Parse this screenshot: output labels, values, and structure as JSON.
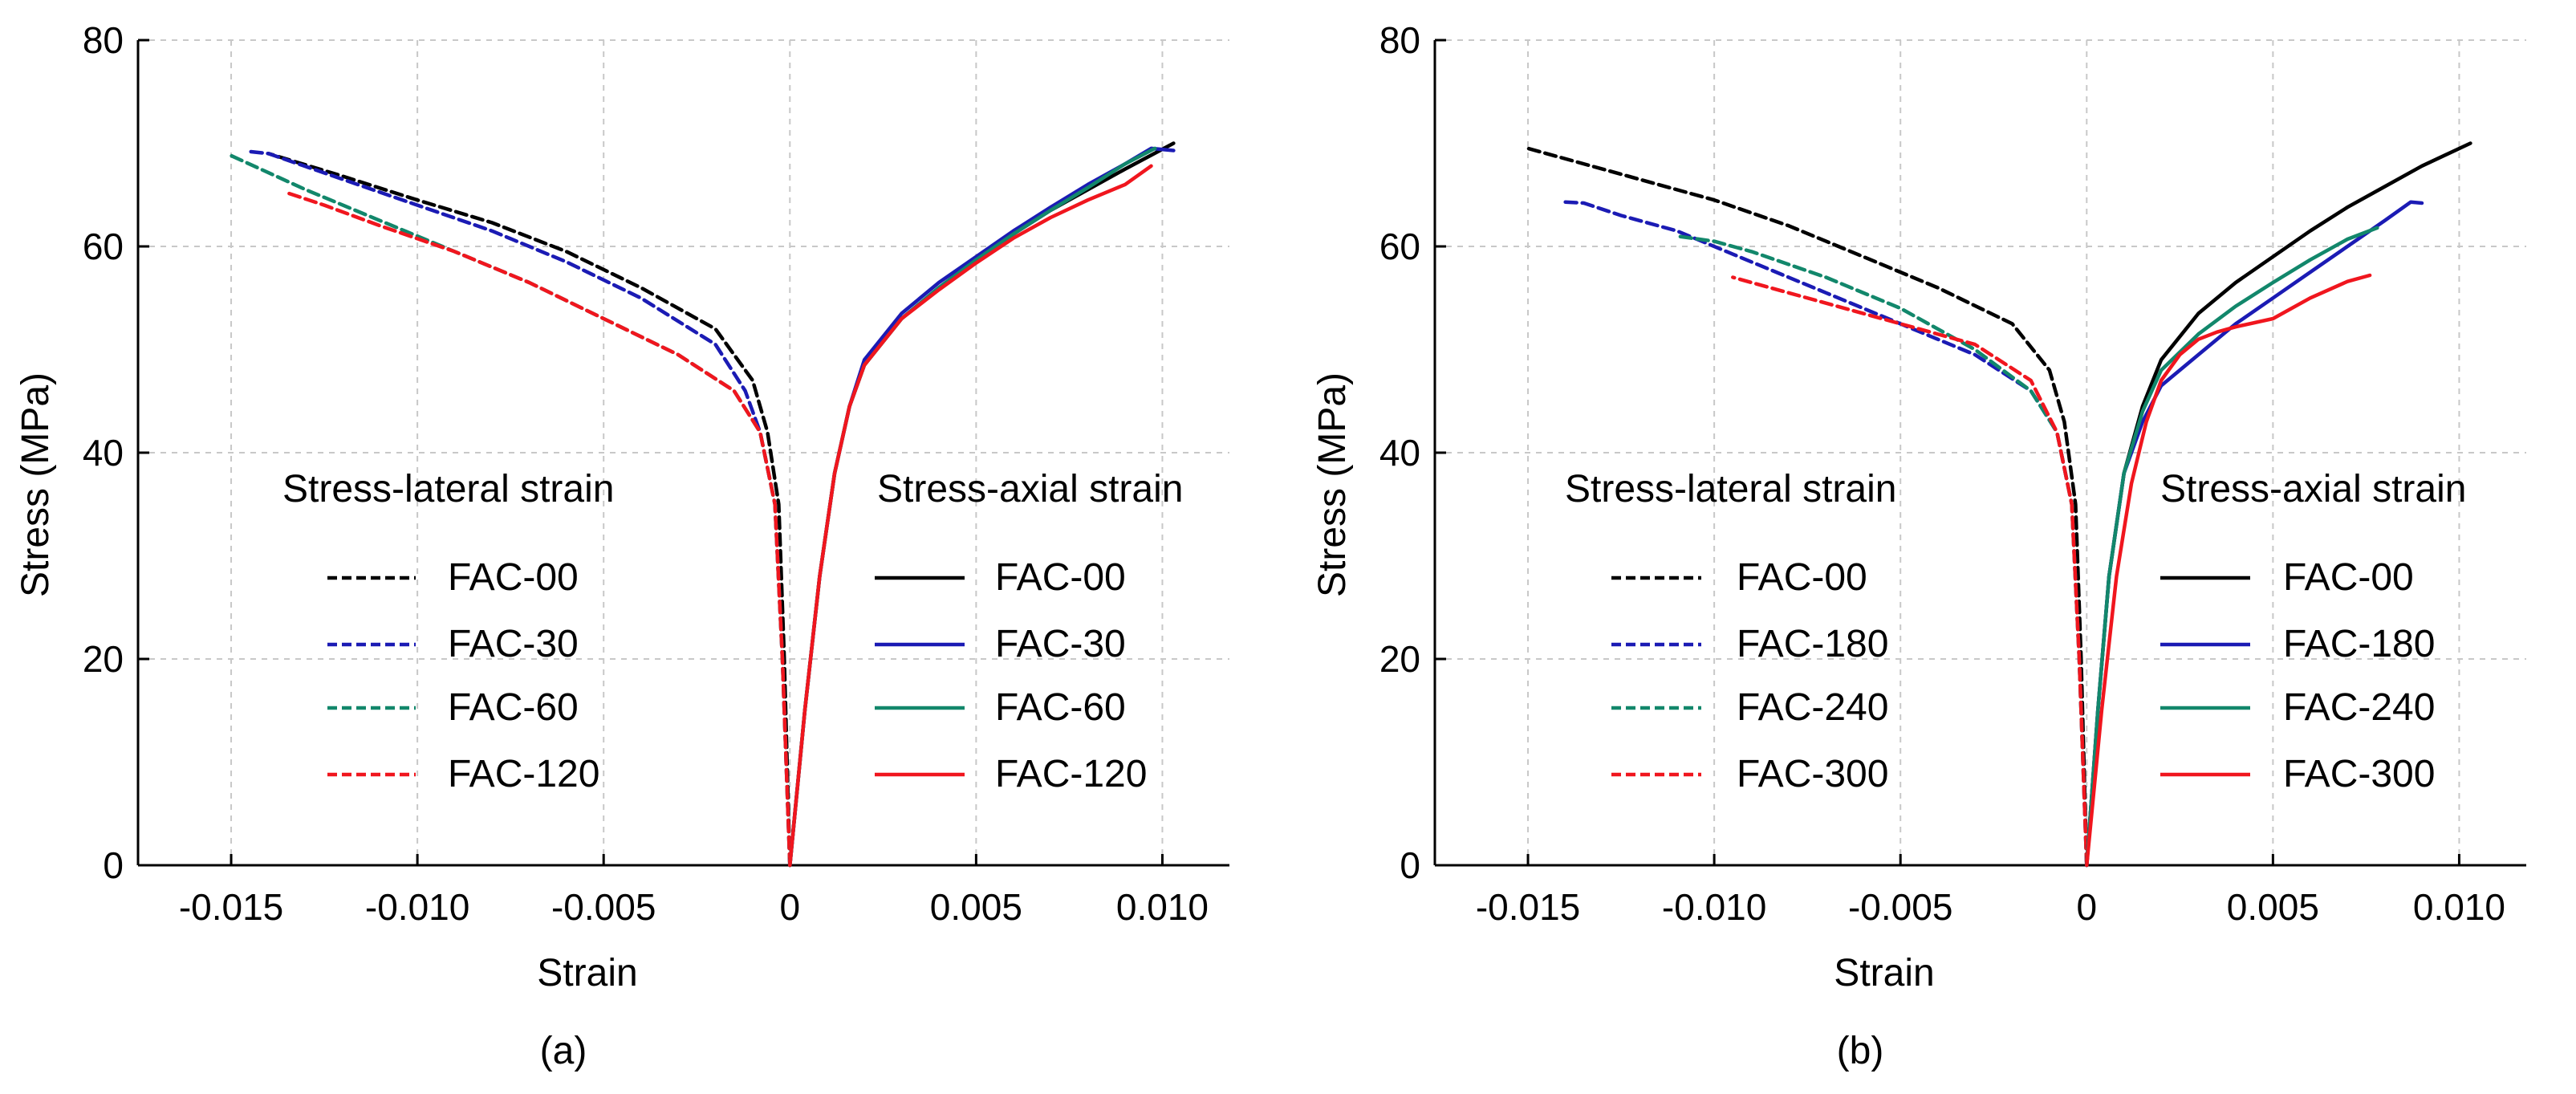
{
  "colors": {
    "FAC-00": "#000000",
    "FAC-30": "#1b1bb4",
    "FAC-180": "#1b1bb4",
    "FAC-60": "#12876b",
    "FAC-240": "#12876b",
    "FAC-120": "#f0161e",
    "FAC-300": "#f0161e"
  },
  "chart_data": [
    {
      "type": "line",
      "caption": "(a)",
      "xlabel": "Strain",
      "ylabel": "Stress (MPa)",
      "xlim": [
        -0.0175,
        0.0118
      ],
      "ylim": [
        0,
        80
      ],
      "xticks": [
        -0.015,
        -0.01,
        -0.005,
        0,
        0.005,
        0.01
      ],
      "xtick_labels": [
        "-0.015",
        "-0.010",
        "-0.005",
        "0",
        "0.005",
        "0.010"
      ],
      "yticks": [
        0,
        20,
        40,
        60,
        80
      ],
      "ytick_labels": [
        "0",
        "20",
        "40",
        "60",
        "80"
      ],
      "grid": true,
      "legend_groups": [
        {
          "title": "Stress-lateral strain",
          "style": "dashed",
          "entries": [
            "FAC-00",
            "FAC-30",
            "FAC-60",
            "FAC-120"
          ]
        },
        {
          "title": "Stress-axial strain",
          "style": "solid",
          "entries": [
            "FAC-00",
            "FAC-30",
            "FAC-60",
            "FAC-120"
          ]
        }
      ],
      "series": [
        {
          "name": "FAC-00",
          "kind": "lateral",
          "x": [
            0,
            -0.00015,
            -0.0003,
            -0.0006,
            -0.001,
            -0.002,
            -0.004,
            -0.006,
            -0.008,
            -0.01,
            -0.012,
            -0.014
          ],
          "y": [
            0,
            20,
            35,
            42,
            47,
            52,
            56,
            59.5,
            62.3,
            64.5,
            66.8,
            69
          ]
        },
        {
          "name": "FAC-30",
          "kind": "lateral",
          "x": [
            0,
            -0.0002,
            -0.0004,
            -0.0008,
            -0.0012,
            -0.002,
            -0.004,
            -0.006,
            -0.008,
            -0.01,
            -0.012,
            -0.014,
            -0.0145
          ],
          "y": [
            0,
            20,
            35,
            42,
            46,
            50.5,
            55,
            58.5,
            61.5,
            64,
            66.5,
            69,
            69.2
          ]
        },
        {
          "name": "FAC-60",
          "kind": "lateral",
          "x": [
            0,
            -0.0002,
            -0.0004,
            -0.0008,
            -0.0015,
            -0.003,
            -0.005,
            -0.007,
            -0.009,
            -0.011,
            -0.013,
            -0.015
          ],
          "y": [
            0,
            20,
            35,
            42,
            46,
            49.5,
            53,
            56.5,
            59.5,
            62.5,
            65.5,
            68.8
          ]
        },
        {
          "name": "FAC-120",
          "kind": "lateral",
          "x": [
            0,
            -0.0002,
            -0.0004,
            -0.0008,
            -0.0015,
            -0.003,
            -0.005,
            -0.007,
            -0.009,
            -0.011,
            -0.0125,
            -0.0135
          ],
          "y": [
            0,
            20,
            35,
            42,
            46,
            49.5,
            53,
            56.5,
            59.5,
            62,
            64,
            65.2
          ]
        },
        {
          "name": "FAC-00",
          "kind": "axial",
          "x": [
            0,
            0.0004,
            0.0008,
            0.0012,
            0.0016,
            0.002,
            0.003,
            0.004,
            0.005,
            0.006,
            0.007,
            0.008,
            0.009,
            0.0103
          ],
          "y": [
            0,
            15,
            28,
            38,
            44.5,
            48.5,
            53,
            56,
            58.7,
            61.2,
            63.5,
            65.5,
            67.5,
            70
          ]
        },
        {
          "name": "FAC-30",
          "kind": "axial",
          "x": [
            0,
            0.0004,
            0.0008,
            0.0012,
            0.0016,
            0.002,
            0.003,
            0.004,
            0.005,
            0.006,
            0.007,
            0.008,
            0.009,
            0.0097,
            0.0103
          ],
          "y": [
            0,
            15,
            28,
            38,
            44.5,
            49,
            53.5,
            56.5,
            59,
            61.5,
            63.8,
            66,
            68,
            69.5,
            69.3
          ]
        },
        {
          "name": "FAC-60",
          "kind": "axial",
          "x": [
            0,
            0.0004,
            0.0008,
            0.0012,
            0.0016,
            0.002,
            0.003,
            0.004,
            0.005,
            0.006,
            0.007,
            0.008,
            0.009,
            0.0098
          ],
          "y": [
            0,
            15,
            28,
            38,
            44.5,
            48.5,
            53,
            56,
            58.7,
            61.2,
            63.5,
            65.7,
            68,
            69.5
          ]
        },
        {
          "name": "FAC-120",
          "kind": "axial",
          "x": [
            0,
            0.0004,
            0.0008,
            0.0012,
            0.0016,
            0.002,
            0.003,
            0.004,
            0.005,
            0.006,
            0.007,
            0.008,
            0.009,
            0.0097
          ],
          "y": [
            0,
            15,
            28,
            38,
            44.5,
            48.5,
            53,
            55.8,
            58.4,
            60.8,
            62.8,
            64.5,
            66,
            67.8
          ]
        }
      ]
    },
    {
      "type": "line",
      "caption": "(b)",
      "xlabel": "Strain",
      "ylabel": "Stress (MPa)",
      "xlim": [
        -0.0175,
        0.0118
      ],
      "ylim": [
        0,
        80
      ],
      "xticks": [
        -0.015,
        -0.01,
        -0.005,
        0,
        0.005,
        0.01
      ],
      "xtick_labels": [
        "-0.015",
        "-0.010",
        "-0.005",
        "0",
        "0.005",
        "0.010"
      ],
      "yticks": [
        0,
        20,
        40,
        60,
        80
      ],
      "ytick_labels": [
        "0",
        "20",
        "40",
        "60",
        "80"
      ],
      "grid": true,
      "legend_groups": [
        {
          "title": "Stress-lateral strain",
          "style": "dashed",
          "entries": [
            "FAC-00",
            "FAC-180",
            "FAC-240",
            "FAC-300"
          ]
        },
        {
          "title": "Stress-axial strain",
          "style": "solid",
          "entries": [
            "FAC-00",
            "FAC-180",
            "FAC-240",
            "FAC-300"
          ]
        }
      ],
      "series": [
        {
          "name": "FAC-00",
          "kind": "lateral",
          "x": [
            0,
            -0.00015,
            -0.0003,
            -0.0006,
            -0.001,
            -0.002,
            -0.004,
            -0.006,
            -0.008,
            -0.01,
            -0.012,
            -0.015
          ],
          "y": [
            0,
            20,
            35,
            43,
            48,
            52.5,
            56,
            59,
            62,
            64.5,
            66.5,
            69.5
          ]
        },
        {
          "name": "FAC-180",
          "kind": "lateral",
          "x": [
            0,
            -0.0002,
            -0.0004,
            -0.0008,
            -0.0015,
            -0.003,
            -0.005,
            -0.007,
            -0.009,
            -0.011,
            -0.0125,
            -0.0135,
            -0.014
          ],
          "y": [
            0,
            20,
            35,
            42,
            46,
            49.5,
            52.5,
            55.5,
            58.5,
            61.5,
            63,
            64.2,
            64.3
          ]
        },
        {
          "name": "FAC-240",
          "kind": "lateral",
          "x": [
            0,
            -0.0002,
            -0.0004,
            -0.0008,
            -0.0015,
            -0.003,
            -0.005,
            -0.007,
            -0.009,
            -0.01,
            -0.011
          ],
          "y": [
            0,
            20,
            35,
            42,
            46,
            50,
            54,
            57,
            59.5,
            60.5,
            61
          ]
        },
        {
          "name": "FAC-300",
          "kind": "lateral",
          "x": [
            0,
            -0.0002,
            -0.0004,
            -0.0008,
            -0.0015,
            -0.003,
            -0.005,
            -0.007,
            -0.009,
            -0.0095
          ],
          "y": [
            0,
            20,
            35,
            42,
            47,
            50.5,
            52.5,
            54.5,
            56.5,
            57
          ]
        },
        {
          "name": "FAC-00",
          "kind": "axial",
          "x": [
            0,
            0.0003,
            0.0006,
            0.001,
            0.0015,
            0.002,
            0.003,
            0.004,
            0.005,
            0.006,
            0.007,
            0.008,
            0.009,
            0.0103
          ],
          "y": [
            0,
            15,
            28,
            38,
            44.5,
            49,
            53.5,
            56.5,
            59,
            61.5,
            63.8,
            65.8,
            67.8,
            70
          ]
        },
        {
          "name": "FAC-180",
          "kind": "axial",
          "x": [
            0,
            0.0003,
            0.0006,
            0.001,
            0.0015,
            0.002,
            0.003,
            0.004,
            0.005,
            0.006,
            0.007,
            0.008,
            0.0087,
            0.009
          ],
          "y": [
            0,
            15,
            28,
            38,
            43,
            46.5,
            49.5,
            52.5,
            55,
            57.5,
            60,
            62.5,
            64.3,
            64.2
          ]
        },
        {
          "name": "FAC-240",
          "kind": "axial",
          "x": [
            0,
            0.0003,
            0.0006,
            0.001,
            0.0015,
            0.002,
            0.003,
            0.004,
            0.005,
            0.006,
            0.007,
            0.0078
          ],
          "y": [
            0,
            15,
            28,
            38,
            44,
            48,
            51.5,
            54.2,
            56.5,
            58.7,
            60.7,
            61.8
          ]
        },
        {
          "name": "FAC-300",
          "kind": "axial",
          "x": [
            0,
            0.0004,
            0.0008,
            0.0012,
            0.0016,
            0.002,
            0.0025,
            0.003,
            0.0035,
            0.004,
            0.005,
            0.006,
            0.007,
            0.0076
          ],
          "y": [
            0,
            15,
            28,
            37,
            43,
            47,
            49.5,
            51,
            51.7,
            52.2,
            53,
            55,
            56.6,
            57.2
          ]
        }
      ]
    }
  ]
}
